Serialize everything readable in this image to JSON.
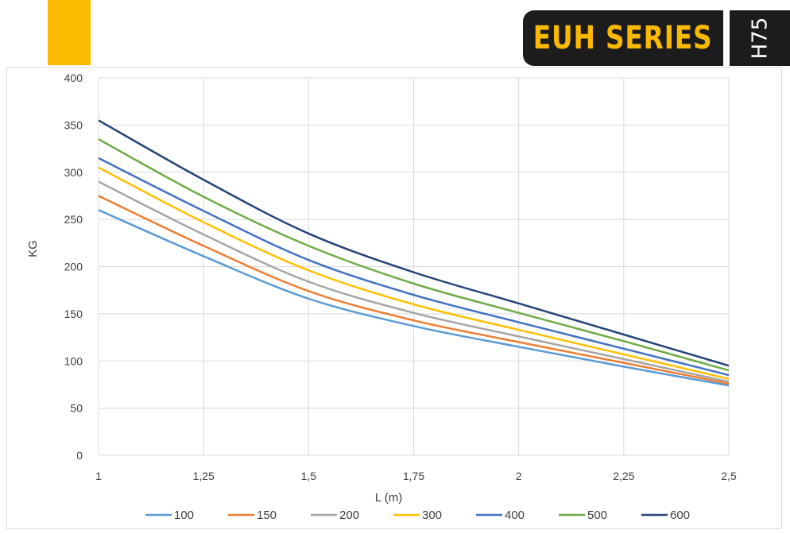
{
  "header": {
    "brand": "EUH SERIES",
    "model": "H75",
    "accent_color": "#FBB900",
    "badge_color": "#1c1c1c"
  },
  "chart_data": {
    "type": "line",
    "title": "",
    "xlabel": "L (m)",
    "ylabel": "KG",
    "x": [
      1,
      1.25,
      1.5,
      1.75,
      2,
      2.25,
      2.5
    ],
    "x_tick_labels": [
      "1",
      "1,25",
      "1,5",
      "1,75",
      "2",
      "2,25",
      "2,5"
    ],
    "xlim": [
      1,
      2.5
    ],
    "ylim": [
      0,
      400
    ],
    "y_ticks": [
      0,
      50,
      100,
      150,
      200,
      250,
      300,
      350,
      400
    ],
    "grid": true,
    "legend_position": "bottom",
    "series": [
      {
        "name": "100",
        "color": "#5B9BD5",
        "values": [
          260,
          211,
          166,
          137,
          115,
          94,
          74
        ]
      },
      {
        "name": "150",
        "color": "#ED7D31",
        "values": [
          275,
          222,
          174,
          143,
          120,
          98,
          76
        ]
      },
      {
        "name": "200",
        "color": "#A5A5A5",
        "values": [
          290,
          234,
          184,
          151,
          126,
          102,
          78
        ]
      },
      {
        "name": "300",
        "color": "#FFC000",
        "values": [
          305,
          247,
          196,
          160,
          133,
          107,
          81
        ]
      },
      {
        "name": "400",
        "color": "#4472C4",
        "values": [
          315,
          259,
          207,
          170,
          141,
          113,
          85
        ]
      },
      {
        "name": "500",
        "color": "#70AD47",
        "values": [
          335,
          274,
          222,
          182,
          151,
          121,
          90
        ]
      },
      {
        "name": "600",
        "color": "#264478",
        "values": [
          355,
          292,
          235,
          194,
          161,
          128,
          95
        ]
      }
    ]
  }
}
